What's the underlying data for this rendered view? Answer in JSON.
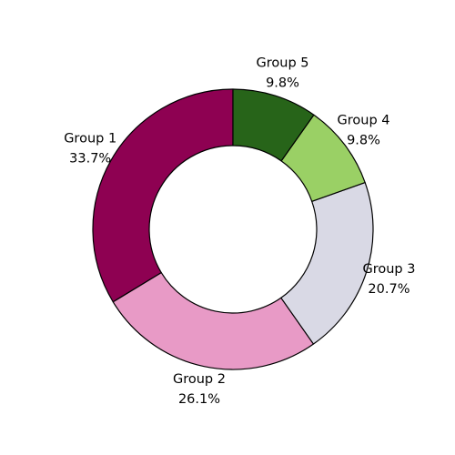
{
  "chart_data": {
    "type": "pie",
    "donut": true,
    "start_angle_deg": 90,
    "direction": "counterclockwise",
    "edge_color": "#000000",
    "slices": [
      {
        "label": "Group 1",
        "value": 33.7,
        "pct_label": "33.7%",
        "color": "#8e0152"
      },
      {
        "label": "Group 2",
        "value": 26.1,
        "pct_label": "26.1%",
        "color": "#e89ac6"
      },
      {
        "label": "Group 3",
        "value": 20.7,
        "pct_label": "20.7%",
        "color": "#d9d9e5"
      },
      {
        "label": "Group 4",
        "value": 9.8,
        "pct_label": "9.8%",
        "color": "#9ad065"
      },
      {
        "label": "Group 5",
        "value": 9.8,
        "pct_label": "9.8%",
        "color": "#276419"
      }
    ]
  }
}
